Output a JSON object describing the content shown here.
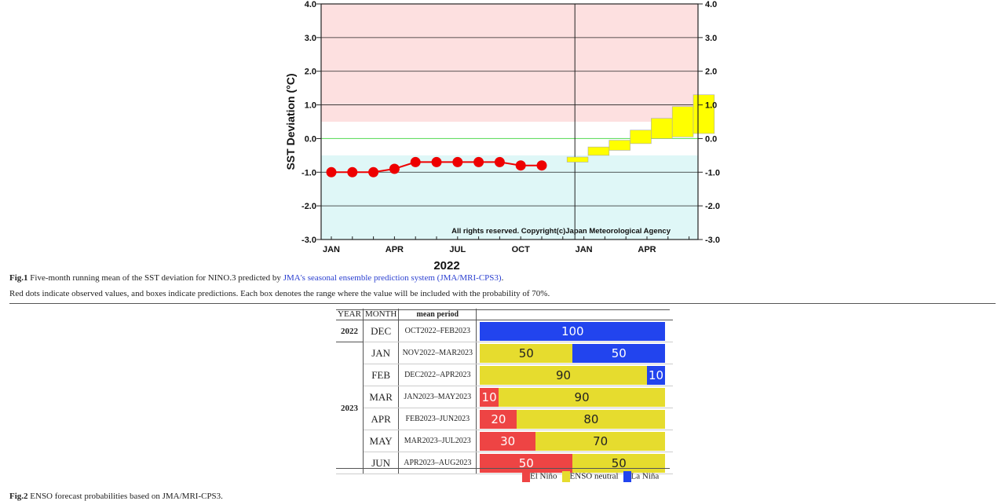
{
  "chart_data": {
    "type": "line",
    "ylabel": "SST Deviation (°C)",
    "ylim": [
      -3.0,
      4.0
    ],
    "yticks": [
      "4.0",
      "3.0",
      "2.0",
      "1.0",
      "0.0",
      "-1.0",
      "-2.0",
      "-3.0"
    ],
    "xtick_labels": [
      "JAN",
      "APR",
      "JUL",
      "OCT",
      "JAN",
      "APR"
    ],
    "year_label": "2022",
    "copyright": "All rights reserved. Copyright(c)Japan Meteorological Agency",
    "el_nino_threshold": 0.5,
    "la_nina_threshold": -0.5,
    "observed": {
      "months": [
        "JAN",
        "FEB",
        "MAR",
        "APR",
        "MAY",
        "JUN",
        "JUL",
        "AUG",
        "SEP",
        "OCT",
        "NOV"
      ],
      "values": [
        -1.0,
        -1.0,
        -1.0,
        -0.9,
        -0.7,
        -0.7,
        -0.7,
        -0.7,
        -0.7,
        -0.8,
        -0.8
      ]
    },
    "predicted_ranges": [
      {
        "month": "DEC 2022",
        "low": -0.7,
        "high": -0.55
      },
      {
        "month": "JAN 2023",
        "low": -0.5,
        "high": -0.25
      },
      {
        "month": "FEB 2023",
        "low": -0.35,
        "high": -0.05
      },
      {
        "month": "MAR 2023",
        "low": -0.15,
        "high": 0.25
      },
      {
        "month": "APR 2023",
        "low": 0.0,
        "high": 0.6
      },
      {
        "month": "MAY 2023",
        "low": 0.05,
        "high": 0.95
      },
      {
        "month": "JUN 2023",
        "low": 0.15,
        "high": 1.3
      }
    ],
    "colors": {
      "el_nino_zone": "#fde0e0",
      "la_nina_zone": "#dff7f7",
      "zero_line": "#66dd66",
      "observed": "#ee0000",
      "prediction": "#ffff00"
    }
  },
  "caption1": {
    "label": "Fig.1",
    "text_before": " Five-month running mean of the SST deviation for NINO.3 predicted by ",
    "link": "JMA's seasonal ensemble prediction system (JMA/MRI-CPS3)",
    "text_after": "."
  },
  "caption2": "Red dots indicate observed values, and boxes indicate predictions. Each box denotes the range where the value will be included with the probability of 70%.",
  "table": {
    "headers": [
      "YEAR",
      "MONTH",
      "mean period"
    ],
    "rows": [
      {
        "year": "2022",
        "month": "DEC",
        "period": "OCT2022–FEB2023",
        "elnino": 0,
        "neutral": 0,
        "lanina": 100,
        "labels": [
          "",
          "",
          "100"
        ]
      },
      {
        "year": "2023",
        "month": "JAN",
        "period": "NOV2022–MAR2023",
        "elnino": 0,
        "neutral": 50,
        "lanina": 50,
        "labels": [
          "",
          "50",
          "50"
        ]
      },
      {
        "year": "",
        "month": "FEB",
        "period": "DEC2022–APR2023",
        "elnino": 0,
        "neutral": 90,
        "lanina": 10,
        "labels": [
          "",
          "90",
          "10"
        ]
      },
      {
        "year": "",
        "month": "MAR",
        "period": "JAN2023–MAY2023",
        "elnino": 10,
        "neutral": 90,
        "lanina": 0,
        "labels": [
          "10",
          "90",
          ""
        ]
      },
      {
        "year": "",
        "month": "APR",
        "period": "FEB2023–JUN2023",
        "elnino": 20,
        "neutral": 80,
        "lanina": 0,
        "labels": [
          "20",
          "80",
          ""
        ]
      },
      {
        "year": "",
        "month": "MAY",
        "period": "MAR2023–JUL2023",
        "elnino": 30,
        "neutral": 70,
        "lanina": 0,
        "labels": [
          "30",
          "70",
          ""
        ]
      },
      {
        "year": "",
        "month": "JUN",
        "period": "APR2023–AUG2023",
        "elnino": 50,
        "neutral": 50,
        "lanina": 0,
        "labels": [
          "50",
          "50",
          ""
        ]
      }
    ],
    "colors": {
      "elnino": "#ee4444",
      "neutral": "#e6dc2e",
      "lanina": "#2244ee"
    }
  },
  "legend": {
    "elnino": "El Niño",
    "neutral": "ENSO neutral",
    "lanina": "La Niña"
  },
  "caption3": {
    "label": "Fig.2",
    "text": " ENSO forecast probabilities based on JMA/MRI-CPS3."
  }
}
